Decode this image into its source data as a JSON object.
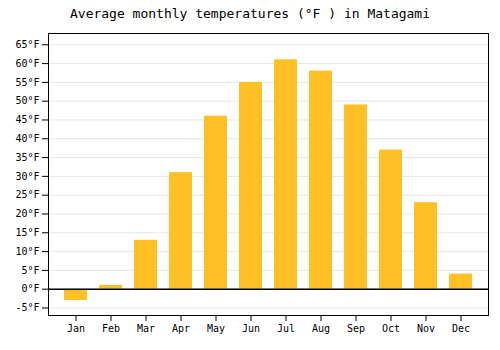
{
  "chart_data": {
    "type": "bar",
    "title": "Average monthly temperatures (°F ) in Matagami",
    "categories": [
      "Jan",
      "Feb",
      "Mar",
      "Apr",
      "May",
      "Jun",
      "Jul",
      "Aug",
      "Sep",
      "Oct",
      "Nov",
      "Dec"
    ],
    "values": [
      -3,
      1,
      13,
      31,
      46,
      55,
      61,
      58,
      49,
      37,
      23,
      4
    ],
    "color": "#FFC025",
    "ylim": [
      -7,
      68
    ],
    "yticks": [
      {
        "value": -5,
        "label": "-5°F"
      },
      {
        "value": 0,
        "label": "0°F"
      },
      {
        "value": 5,
        "label": "5°F"
      },
      {
        "value": 10,
        "label": "10°F"
      },
      {
        "value": 15,
        "label": "15°F"
      },
      {
        "value": 20,
        "label": "20°F"
      },
      {
        "value": 25,
        "label": "25°F"
      },
      {
        "value": 30,
        "label": "30°F"
      },
      {
        "value": 35,
        "label": "35°F"
      },
      {
        "value": 40,
        "label": "40°F"
      },
      {
        "value": 45,
        "label": "45°F"
      },
      {
        "value": 50,
        "label": "50°F"
      },
      {
        "value": 55,
        "label": "55°F"
      },
      {
        "value": 60,
        "label": "60°F"
      },
      {
        "value": 65,
        "label": "65°F"
      }
    ],
    "grid": true
  }
}
